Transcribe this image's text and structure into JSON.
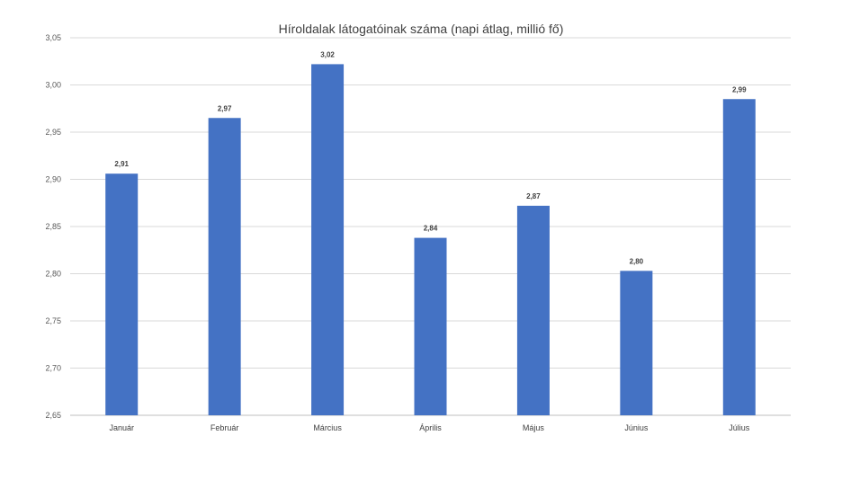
{
  "chart_data": {
    "type": "bar",
    "title": "Híroldalak látogatóinak száma (napi átlag, millió fő)",
    "xlabel": "",
    "ylabel": "",
    "categories": [
      "Január",
      "Február",
      "Március",
      "Április",
      "Május",
      "Június",
      "Július"
    ],
    "series": [
      {
        "values": [
          2.906,
          2.965,
          3.022,
          2.838,
          2.872,
          2.803,
          2.985
        ],
        "labels": [
          "2,91",
          "2,97",
          "3,02",
          "2,84",
          "2,87",
          "2,80",
          "2,99"
        ]
      }
    ],
    "ylim": [
      2.65,
      3.05
    ],
    "yticks": [
      "2,65",
      "2,70",
      "2,75",
      "2,80",
      "2,85",
      "2,90",
      "2,95",
      "3,00",
      "3,05"
    ],
    "grid": true,
    "legend": "none",
    "colors": {
      "bar": "#4472C4",
      "grid": "#D9D9D9",
      "axis": "#BFBFBF"
    }
  }
}
